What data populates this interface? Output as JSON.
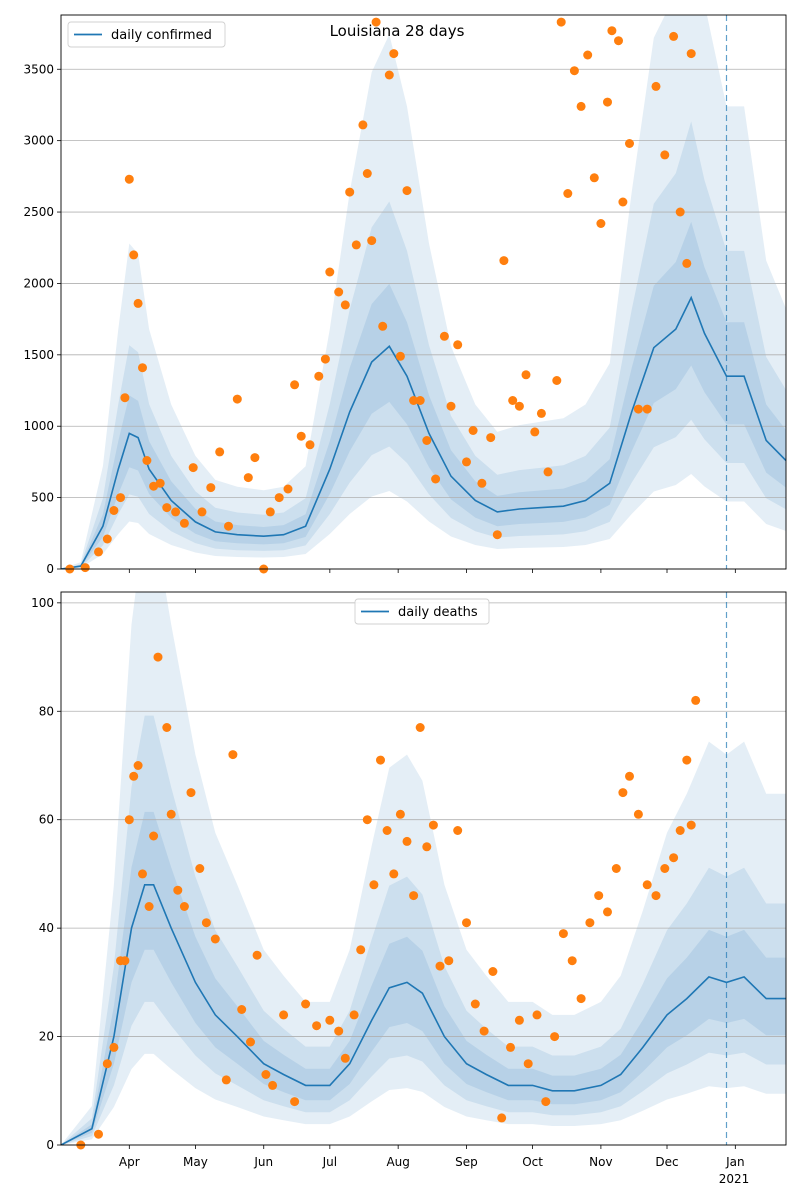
{
  "figure": {
    "title": "Louisiana 28 days"
  },
  "colors": {
    "model_line": "#1f77b4",
    "observed_points": "#ff7f0e",
    "band": "#1f77b4",
    "grid": "#b0b0b0",
    "today_line": "#1f77b4"
  },
  "x_axis": {
    "date_range": [
      "2020-03-01",
      "2021-01-24"
    ],
    "tick_labels": [
      "Apr",
      "May",
      "Jun",
      "Jul",
      "Aug",
      "Sep",
      "Oct",
      "Nov",
      "Dec",
      "Jan"
    ],
    "tick_dates": [
      "2020-04-01",
      "2020-05-01",
      "2020-06-01",
      "2020-07-01",
      "2020-08-01",
      "2020-09-01",
      "2020-10-01",
      "2020-11-01",
      "2020-12-01",
      "2021-01-01"
    ],
    "year_label": "2021",
    "today_marker": "2020-12-28"
  },
  "chart_data": [
    {
      "type": "line",
      "title": "Louisiana 28 days",
      "legend": [
        "daily confirmed"
      ],
      "legend_position": "top-left",
      "grid": "y",
      "ylim": [
        0,
        3880
      ],
      "yticks": [
        0,
        500,
        1000,
        1500,
        2000,
        2500,
        3000,
        3500
      ],
      "series": [
        {
          "name": "daily confirmed",
          "line_points": [
            [
              "2020-03-01",
              0
            ],
            [
              "2020-03-10",
              20
            ],
            [
              "2020-03-20",
              300
            ],
            [
              "2020-03-27",
              700
            ],
            [
              "2020-04-01",
              950
            ],
            [
              "2020-04-05",
              920
            ],
            [
              "2020-04-10",
              700
            ],
            [
              "2020-04-20",
              480
            ],
            [
              "2020-05-01",
              330
            ],
            [
              "2020-05-10",
              260
            ],
            [
              "2020-05-20",
              240
            ],
            [
              "2020-06-01",
              230
            ],
            [
              "2020-06-10",
              240
            ],
            [
              "2020-06-20",
              300
            ],
            [
              "2020-07-01",
              700
            ],
            [
              "2020-07-10",
              1100
            ],
            [
              "2020-07-20",
              1450
            ],
            [
              "2020-07-28",
              1560
            ],
            [
              "2020-08-05",
              1350
            ],
            [
              "2020-08-15",
              950
            ],
            [
              "2020-08-25",
              650
            ],
            [
              "2020-09-05",
              480
            ],
            [
              "2020-09-15",
              400
            ],
            [
              "2020-09-25",
              420
            ],
            [
              "2020-10-05",
              430
            ],
            [
              "2020-10-15",
              440
            ],
            [
              "2020-10-25",
              480
            ],
            [
              "2020-11-05",
              600
            ],
            [
              "2020-11-15",
              1100
            ],
            [
              "2020-11-25",
              1550
            ],
            [
              "2020-12-05",
              1680
            ],
            [
              "2020-12-12",
              1900
            ],
            [
              "2020-12-18",
              1650
            ],
            [
              "2020-12-28",
              1350
            ],
            [
              "2021-01-05",
              1350
            ],
            [
              "2021-01-15",
              900
            ],
            [
              "2021-01-24",
              760
            ]
          ],
          "observed_points": [
            [
              "2020-03-05",
              0
            ],
            [
              "2020-03-12",
              10
            ],
            [
              "2020-03-18",
              120
            ],
            [
              "2020-03-22",
              210
            ],
            [
              "2020-03-25",
              410
            ],
            [
              "2020-03-28",
              500
            ],
            [
              "2020-03-30",
              1200
            ],
            [
              "2020-04-01",
              2730
            ],
            [
              "2020-04-03",
              2200
            ],
            [
              "2020-04-05",
              1860
            ],
            [
              "2020-04-07",
              1410
            ],
            [
              "2020-04-09",
              760
            ],
            [
              "2020-04-12",
              580
            ],
            [
              "2020-04-15",
              600
            ],
            [
              "2020-04-18",
              430
            ],
            [
              "2020-04-22",
              400
            ],
            [
              "2020-04-26",
              320
            ],
            [
              "2020-04-30",
              710
            ],
            [
              "2020-05-04",
              400
            ],
            [
              "2020-05-08",
              570
            ],
            [
              "2020-05-12",
              820
            ],
            [
              "2020-05-16",
              300
            ],
            [
              "2020-05-20",
              1190
            ],
            [
              "2020-05-25",
              640
            ],
            [
              "2020-05-28",
              780
            ],
            [
              "2020-06-01",
              0
            ],
            [
              "2020-06-04",
              400
            ],
            [
              "2020-06-08",
              500
            ],
            [
              "2020-06-12",
              560
            ],
            [
              "2020-06-15",
              1290
            ],
            [
              "2020-06-18",
              930
            ],
            [
              "2020-06-22",
              870
            ],
            [
              "2020-06-26",
              1350
            ],
            [
              "2020-06-29",
              1470
            ],
            [
              "2020-07-01",
              2080
            ],
            [
              "2020-07-05",
              1940
            ],
            [
              "2020-07-08",
              1850
            ],
            [
              "2020-07-10",
              2640
            ],
            [
              "2020-07-13",
              2270
            ],
            [
              "2020-07-16",
              3110
            ],
            [
              "2020-07-18",
              2770
            ],
            [
              "2020-07-20",
              2300
            ],
            [
              "2020-07-22",
              3830
            ],
            [
              "2020-07-25",
              1700
            ],
            [
              "2020-07-28",
              3460
            ],
            [
              "2020-07-30",
              3610
            ],
            [
              "2020-08-02",
              1490
            ],
            [
              "2020-08-05",
              2650
            ],
            [
              "2020-08-08",
              1180
            ],
            [
              "2020-08-11",
              1180
            ],
            [
              "2020-08-14",
              900
            ],
            [
              "2020-08-18",
              630
            ],
            [
              "2020-08-22",
              1630
            ],
            [
              "2020-08-25",
              1140
            ],
            [
              "2020-08-28",
              1570
            ],
            [
              "2020-09-01",
              750
            ],
            [
              "2020-09-04",
              970
            ],
            [
              "2020-09-08",
              600
            ],
            [
              "2020-09-12",
              920
            ],
            [
              "2020-09-15",
              240
            ],
            [
              "2020-09-18",
              2160
            ],
            [
              "2020-09-22",
              1180
            ],
            [
              "2020-09-25",
              1140
            ],
            [
              "2020-09-28",
              1360
            ],
            [
              "2020-10-02",
              960
            ],
            [
              "2020-10-05",
              1090
            ],
            [
              "2020-10-08",
              680
            ],
            [
              "2020-10-12",
              1320
            ],
            [
              "2020-10-14",
              3830
            ],
            [
              "2020-10-17",
              2630
            ],
            [
              "2020-10-20",
              3490
            ],
            [
              "2020-10-23",
              3240
            ],
            [
              "2020-10-26",
              3600
            ],
            [
              "2020-10-29",
              2740
            ],
            [
              "2020-11-01",
              2420
            ],
            [
              "2020-11-04",
              3270
            ],
            [
              "2020-11-06",
              3770
            ],
            [
              "2020-11-09",
              3700
            ],
            [
              "2020-11-11",
              2570
            ],
            [
              "2020-11-14",
              2980
            ],
            [
              "2020-11-18",
              1120
            ],
            [
              "2020-11-22",
              1120
            ],
            [
              "2020-11-26",
              3380
            ],
            [
              "2020-11-30",
              2900
            ],
            [
              "2020-12-04",
              3730
            ],
            [
              "2020-12-07",
              2500
            ],
            [
              "2020-12-10",
              2140
            ],
            [
              "2020-12-12",
              3610
            ]
          ]
        }
      ]
    },
    {
      "type": "line",
      "title": "",
      "legend": [
        "daily deaths"
      ],
      "legend_position": "top-center",
      "grid": "y",
      "ylim": [
        0,
        102
      ],
      "yticks": [
        0,
        20,
        40,
        60,
        80,
        100
      ],
      "series": [
        {
          "name": "daily deaths",
          "line_points": [
            [
              "2020-03-01",
              0
            ],
            [
              "2020-03-15",
              3
            ],
            [
              "2020-03-25",
              20
            ],
            [
              "2020-04-02",
              40
            ],
            [
              "2020-04-08",
              48
            ],
            [
              "2020-04-12",
              48
            ],
            [
              "2020-04-20",
              40
            ],
            [
              "2020-05-01",
              30
            ],
            [
              "2020-05-10",
              24
            ],
            [
              "2020-05-20",
              20
            ],
            [
              "2020-06-01",
              15
            ],
            [
              "2020-06-10",
              13
            ],
            [
              "2020-06-20",
              11
            ],
            [
              "2020-07-01",
              11
            ],
            [
              "2020-07-10",
              15
            ],
            [
              "2020-07-20",
              23
            ],
            [
              "2020-07-28",
              29
            ],
            [
              "2020-08-05",
              30
            ],
            [
              "2020-08-12",
              28
            ],
            [
              "2020-08-22",
              20
            ],
            [
              "2020-09-01",
              15
            ],
            [
              "2020-09-10",
              13
            ],
            [
              "2020-09-20",
              11
            ],
            [
              "2020-10-01",
              11
            ],
            [
              "2020-10-10",
              10
            ],
            [
              "2020-10-20",
              10
            ],
            [
              "2020-11-01",
              11
            ],
            [
              "2020-11-10",
              13
            ],
            [
              "2020-11-20",
              18
            ],
            [
              "2020-12-01",
              24
            ],
            [
              "2020-12-10",
              27
            ],
            [
              "2020-12-20",
              31
            ],
            [
              "2020-12-28",
              30
            ],
            [
              "2021-01-05",
              31
            ],
            [
              "2021-01-15",
              27
            ],
            [
              "2021-01-24",
              27
            ]
          ],
          "observed_points": [
            [
              "2020-03-10",
              0
            ],
            [
              "2020-03-18",
              2
            ],
            [
              "2020-03-22",
              15
            ],
            [
              "2020-03-25",
              18
            ],
            [
              "2020-03-28",
              34
            ],
            [
              "2020-03-30",
              34
            ],
            [
              "2020-04-01",
              60
            ],
            [
              "2020-04-03",
              68
            ],
            [
              "2020-04-05",
              70
            ],
            [
              "2020-04-07",
              50
            ],
            [
              "2020-04-10",
              44
            ],
            [
              "2020-04-12",
              57
            ],
            [
              "2020-04-14",
              90
            ],
            [
              "2020-04-18",
              77
            ],
            [
              "2020-04-20",
              61
            ],
            [
              "2020-04-23",
              47
            ],
            [
              "2020-04-26",
              44
            ],
            [
              "2020-04-29",
              65
            ],
            [
              "2020-05-03",
              51
            ],
            [
              "2020-05-06",
              41
            ],
            [
              "2020-05-10",
              38
            ],
            [
              "2020-05-15",
              12
            ],
            [
              "2020-05-18",
              72
            ],
            [
              "2020-05-22",
              25
            ],
            [
              "2020-05-26",
              19
            ],
            [
              "2020-05-29",
              35
            ],
            [
              "2020-06-02",
              13
            ],
            [
              "2020-06-05",
              11
            ],
            [
              "2020-06-10",
              24
            ],
            [
              "2020-06-15",
              8
            ],
            [
              "2020-06-20",
              26
            ],
            [
              "2020-06-25",
              22
            ],
            [
              "2020-07-01",
              23
            ],
            [
              "2020-07-05",
              21
            ],
            [
              "2020-07-08",
              16
            ],
            [
              "2020-07-12",
              24
            ],
            [
              "2020-07-15",
              36
            ],
            [
              "2020-07-18",
              60
            ],
            [
              "2020-07-21",
              48
            ],
            [
              "2020-07-24",
              71
            ],
            [
              "2020-07-27",
              58
            ],
            [
              "2020-07-30",
              50
            ],
            [
              "2020-08-02",
              61
            ],
            [
              "2020-08-05",
              56
            ],
            [
              "2020-08-08",
              46
            ],
            [
              "2020-08-11",
              77
            ],
            [
              "2020-08-14",
              55
            ],
            [
              "2020-08-17",
              59
            ],
            [
              "2020-08-20",
              33
            ],
            [
              "2020-08-24",
              34
            ],
            [
              "2020-08-28",
              58
            ],
            [
              "2020-09-01",
              41
            ],
            [
              "2020-09-05",
              26
            ],
            [
              "2020-09-09",
              21
            ],
            [
              "2020-09-13",
              32
            ],
            [
              "2020-09-17",
              5
            ],
            [
              "2020-09-21",
              18
            ],
            [
              "2020-09-25",
              23
            ],
            [
              "2020-09-29",
              15
            ],
            [
              "2020-10-03",
              24
            ],
            [
              "2020-10-07",
              8
            ],
            [
              "2020-10-11",
              20
            ],
            [
              "2020-10-15",
              39
            ],
            [
              "2020-10-19",
              34
            ],
            [
              "2020-10-23",
              27
            ],
            [
              "2020-10-27",
              41
            ],
            [
              "2020-10-31",
              46
            ],
            [
              "2020-11-04",
              43
            ],
            [
              "2020-11-08",
              51
            ],
            [
              "2020-11-11",
              65
            ],
            [
              "2020-11-14",
              68
            ],
            [
              "2020-11-18",
              61
            ],
            [
              "2020-11-22",
              48
            ],
            [
              "2020-11-26",
              46
            ],
            [
              "2020-11-30",
              51
            ],
            [
              "2020-12-04",
              53
            ],
            [
              "2020-12-07",
              58
            ],
            [
              "2020-12-10",
              71
            ],
            [
              "2020-12-12",
              59
            ],
            [
              "2020-12-14",
              82
            ]
          ]
        }
      ]
    }
  ]
}
